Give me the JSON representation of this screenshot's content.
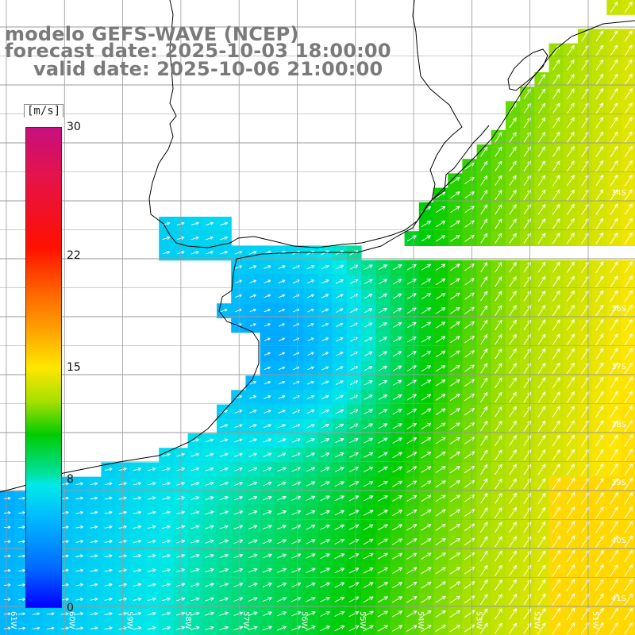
{
  "header": {
    "line1": "modelo GEFS-WAVE (NCEP)",
    "line2": "forecast date: 2025-10-03 18:00:00",
    "line3": "valid date: 2025-10-06 21:00:00"
  },
  "colorbar": {
    "unit": "[m/s]",
    "min": 0,
    "max": 30,
    "ticks": [
      {
        "value": 30,
        "label": "30"
      },
      {
        "value": 22,
        "label": "22"
      },
      {
        "value": 15,
        "label": "15"
      },
      {
        "value": 8,
        "label": "8"
      },
      {
        "value": 0,
        "label": "0"
      }
    ]
  },
  "map": {
    "variable": "wind speed",
    "lon_range": [
      -61.1,
      -50.5
    ],
    "lat_range": [
      -41.3,
      -31.5
    ],
    "lon_labels": [
      "61W",
      "60W",
      "59W",
      "58W",
      "57W",
      "56W",
      "55W",
      "54W",
      "53W",
      "52W",
      "51W"
    ],
    "lat_labels": [
      "34S",
      "35S",
      "36S",
      "37S",
      "38S",
      "39S",
      "40S",
      "41S"
    ],
    "colors": {
      "land": "#ffffff",
      "grid": "#9a9a9a",
      "coast": "#000000",
      "title": "#7a7a7a"
    }
  }
}
